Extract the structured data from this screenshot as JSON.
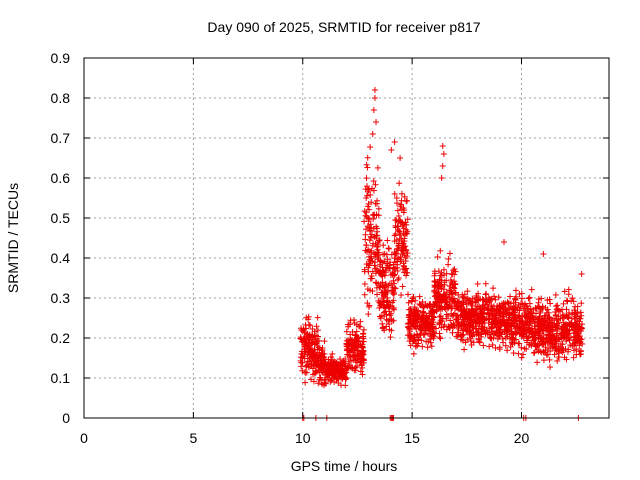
{
  "chart_data": {
    "type": "scatter",
    "title": "Day 090 of 2025, SRMTID for receiver p817",
    "xlabel": "GPS time / hours",
    "ylabel": "SRMTID / TECUs",
    "xlim": [
      0,
      24
    ],
    "ylim": [
      0,
      0.9
    ],
    "xticks": [
      "0",
      "5",
      "10",
      "15",
      "20"
    ],
    "yticks": [
      "0",
      "0.1",
      "0.2",
      "0.3",
      "0.4",
      "0.5",
      "0.6",
      "0.7",
      "0.8",
      "0.9"
    ],
    "grid": true,
    "marker": "+",
    "series_color": "#ee0000",
    "segments": [
      {
        "x_start": 9.9,
        "x_end": 10.7,
        "level": 0.17,
        "spread": 0.07
      },
      {
        "x_start": 10.7,
        "x_end": 11.0,
        "level": 0.14,
        "spread": 0.05
      },
      {
        "x_start": 11.0,
        "x_end": 12.0,
        "level": 0.12,
        "spread": 0.03
      },
      {
        "x_start": 12.0,
        "x_end": 12.8,
        "level": 0.17,
        "spread": 0.06
      },
      {
        "x_start": 12.8,
        "x_end": 13.5,
        "level": 0.45,
        "spread": 0.18
      },
      {
        "x_start": 13.5,
        "x_end": 14.2,
        "level": 0.32,
        "spread": 0.1
      },
      {
        "x_start": 14.2,
        "x_end": 14.8,
        "level": 0.45,
        "spread": 0.12
      },
      {
        "x_start": 14.8,
        "x_end": 16.0,
        "level": 0.24,
        "spread": 0.06
      },
      {
        "x_start": 16.0,
        "x_end": 17.0,
        "level": 0.3,
        "spread": 0.08
      },
      {
        "x_start": 17.0,
        "x_end": 19.0,
        "level": 0.25,
        "spread": 0.06
      },
      {
        "x_start": 19.0,
        "x_end": 20.5,
        "level": 0.24,
        "spread": 0.07
      },
      {
        "x_start": 20.5,
        "x_end": 22.8,
        "level": 0.22,
        "spread": 0.07
      }
    ],
    "peaks": [
      {
        "x": 13.3,
        "y": 0.82
      },
      {
        "x": 13.3,
        "y": 0.8
      },
      {
        "x": 13.25,
        "y": 0.77
      },
      {
        "x": 13.35,
        "y": 0.74
      },
      {
        "x": 13.2,
        "y": 0.71
      },
      {
        "x": 14.2,
        "y": 0.69
      },
      {
        "x": 14.05,
        "y": 0.67
      },
      {
        "x": 14.45,
        "y": 0.65
      },
      {
        "x": 16.4,
        "y": 0.68
      },
      {
        "x": 16.45,
        "y": 0.66
      },
      {
        "x": 16.4,
        "y": 0.63
      },
      {
        "x": 16.35,
        "y": 0.6
      },
      {
        "x": 14.3,
        "y": 0.55
      },
      {
        "x": 12.9,
        "y": 0.55
      },
      {
        "x": 19.2,
        "y": 0.44
      },
      {
        "x": 21.0,
        "y": 0.41
      },
      {
        "x": 22.75,
        "y": 0.36
      }
    ],
    "zeros": [
      10.0,
      10.05,
      10.6,
      11.1,
      14.0,
      14.05,
      14.1,
      14.15,
      20.1,
      20.2,
      22.6
    ]
  }
}
